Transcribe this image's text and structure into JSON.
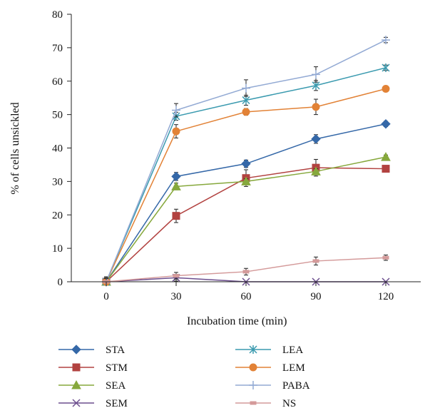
{
  "chart_data": {
    "type": "line",
    "title": "",
    "xlabel": "Incubation time (min)",
    "ylabel": "% of cells unsickled",
    "x": [
      0,
      30,
      60,
      90,
      120
    ],
    "x_ticks": [
      "0",
      "30",
      "60",
      "90",
      "120"
    ],
    "xlim": [
      -15,
      135
    ],
    "y_ticks": [
      "0",
      "10",
      "20",
      "30",
      "40",
      "50",
      "60",
      "70",
      "80"
    ],
    "ylim": [
      0,
      80
    ],
    "grid": false,
    "legend_position": "bottom",
    "series": [
      {
        "name": "STA",
        "values": [
          0,
          31.5,
          35.3,
          42.7,
          47.2
        ],
        "errors": [
          1.5,
          1.2,
          1.1,
          1.3,
          0.8
        ],
        "color": "#3568a8",
        "marker": "diamond"
      },
      {
        "name": "STM",
        "values": [
          0,
          19.7,
          31.0,
          34.1,
          33.8
        ],
        "errors": [
          1.5,
          2.0,
          2.5,
          2.5,
          0.8
        ],
        "color": "#b24240",
        "marker": "square"
      },
      {
        "name": "SEA",
        "values": [
          0,
          28.5,
          30.0,
          33.0,
          37.3
        ],
        "errors": [
          1.0,
          1.0,
          0.8,
          0.8,
          0.6
        ],
        "color": "#86a83c",
        "marker": "triangle"
      },
      {
        "name": "SEM",
        "values": [
          0,
          1.2,
          0,
          0,
          0
        ],
        "errors": [
          1.0,
          1.0,
          0,
          0,
          0
        ],
        "color": "#6c4e8e",
        "marker": "x"
      },
      {
        "name": "LEA",
        "values": [
          0,
          49.5,
          54.3,
          58.7,
          64.0
        ],
        "errors": [
          1.0,
          1.2,
          1.5,
          1.5,
          0.8
        ],
        "color": "#3a9aaf",
        "marker": "asterisk"
      },
      {
        "name": "LEM",
        "values": [
          0,
          45.0,
          50.8,
          52.3,
          57.7
        ],
        "errors": [
          1.0,
          2.0,
          1.0,
          2.3,
          0.8
        ],
        "color": "#e28236",
        "marker": "circle"
      },
      {
        "name": "PABA",
        "values": [
          0,
          51.3,
          57.9,
          62.0,
          72.3
        ],
        "errors": [
          1.0,
          2.0,
          2.5,
          2.3,
          0.8
        ],
        "color": "#93aad4",
        "marker": "plus"
      },
      {
        "name": "NS",
        "values": [
          0,
          1.8,
          3.0,
          6.2,
          7.2
        ],
        "errors": [
          1.2,
          1.0,
          1.0,
          1.2,
          0.8
        ],
        "color": "#d49a9a",
        "marker": "dash"
      }
    ]
  }
}
